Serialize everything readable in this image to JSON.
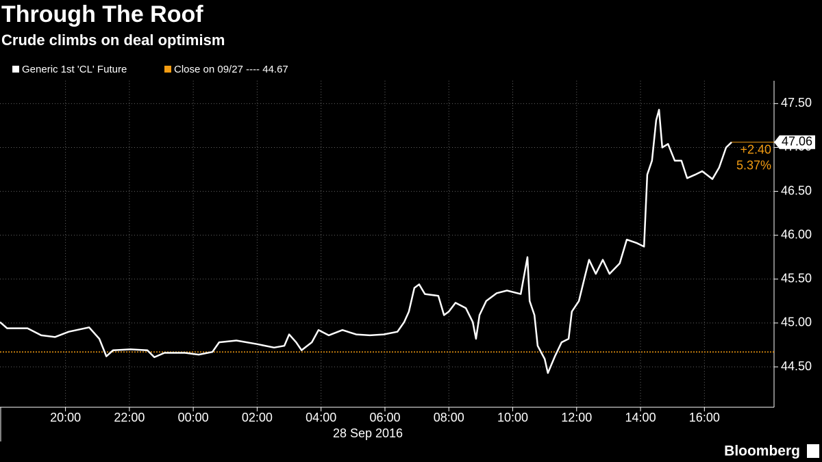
{
  "chart_data": {
    "type": "line",
    "title": "Through The Roof",
    "subtitle": "Crude climbs on deal optimism",
    "x_sublabel": "28 Sep 2016",
    "source": "Bloomberg",
    "series": [
      {
        "name": "Generic 1st 'CL' Future",
        "color": "#ffffff",
        "x": [
          -6.05,
          -5.83,
          -5.19,
          -4.76,
          -4.33,
          -3.9,
          -3.26,
          -2.94,
          -2.72,
          -2.51,
          -1.97,
          -1.44,
          -1.22,
          -0.9,
          -0.26,
          0.17,
          0.6,
          0.81,
          1.35,
          1.99,
          2.53,
          2.85,
          3.0,
          3.22,
          3.39,
          3.71,
          3.92,
          4.24,
          4.67,
          5.1,
          5.53,
          5.96,
          6.39,
          6.6,
          6.75,
          6.92,
          7.07,
          7.25,
          7.67,
          7.85,
          8.0,
          8.21,
          8.53,
          8.75,
          8.85,
          8.96,
          9.17,
          9.5,
          9.82,
          10.25,
          10.46,
          10.53,
          10.68,
          10.78,
          11.0,
          11.1,
          11.32,
          11.53,
          11.75,
          11.85,
          12.07,
          12.28,
          12.39,
          12.6,
          12.82,
          13.03,
          13.35,
          13.57,
          13.89,
          14.11,
          14.21,
          14.36,
          14.49,
          14.58,
          14.68,
          14.86,
          15.07,
          15.28,
          15.46,
          15.71,
          15.93,
          16.25,
          16.46,
          16.68,
          16.85
        ],
        "values": [
          45.01,
          44.94,
          44.94,
          44.86,
          44.84,
          44.9,
          44.95,
          44.82,
          44.62,
          44.69,
          44.7,
          44.69,
          44.61,
          44.66,
          44.66,
          44.64,
          44.67,
          44.78,
          44.8,
          44.76,
          44.72,
          44.74,
          44.87,
          44.78,
          44.69,
          44.78,
          44.92,
          44.86,
          44.92,
          44.87,
          44.86,
          44.87,
          44.9,
          45.01,
          45.13,
          45.4,
          45.44,
          45.33,
          45.31,
          45.09,
          45.13,
          45.23,
          45.17,
          45.01,
          44.82,
          45.09,
          45.25,
          45.34,
          45.37,
          45.33,
          45.75,
          45.25,
          45.09,
          44.74,
          44.59,
          44.43,
          44.62,
          44.78,
          44.82,
          45.13,
          45.25,
          45.56,
          45.72,
          45.56,
          45.72,
          45.56,
          45.68,
          45.95,
          45.91,
          45.87,
          46.69,
          46.85,
          47.31,
          47.43,
          47.0,
          47.04,
          46.85,
          46.85,
          46.65,
          46.69,
          46.73,
          46.64,
          46.77,
          47.0,
          47.06
        ]
      }
    ],
    "reference_line": {
      "label": "Close on 09/27 ---- 44.67",
      "value": 44.67,
      "color": "#f39c12"
    },
    "annotations": [
      {
        "text": "47.06"
      },
      {
        "text": "+2.40"
      },
      {
        "text": "5.37%"
      }
    ],
    "xlim": [
      -6.05,
      18.18
    ],
    "xticks": [
      {
        "value": -4,
        "label": "20:00"
      },
      {
        "value": -2,
        "label": "22:00"
      },
      {
        "value": 0,
        "label": "00:00"
      },
      {
        "value": 2,
        "label": "02:00"
      },
      {
        "value": 4,
        "label": "04:00"
      },
      {
        "value": 6,
        "label": "06:00"
      },
      {
        "value": 8,
        "label": "08:00"
      },
      {
        "value": 10,
        "label": "10:00"
      },
      {
        "value": 12,
        "label": "12:00"
      },
      {
        "value": 14,
        "label": "14:00"
      },
      {
        "value": 16,
        "label": "16:00"
      }
    ],
    "ylim": [
      44.04,
      47.76
    ],
    "yticks": [
      {
        "value": 44.5,
        "label": "44.50"
      },
      {
        "value": 45,
        "label": "45.00"
      },
      {
        "value": 45.5,
        "label": "45.50"
      },
      {
        "value": 46,
        "label": "46.00"
      },
      {
        "value": 46.5,
        "label": "46.50"
      },
      {
        "value": 47,
        "label": "47.00"
      },
      {
        "value": 47.5,
        "label": "47.50"
      }
    ],
    "grid": true
  }
}
